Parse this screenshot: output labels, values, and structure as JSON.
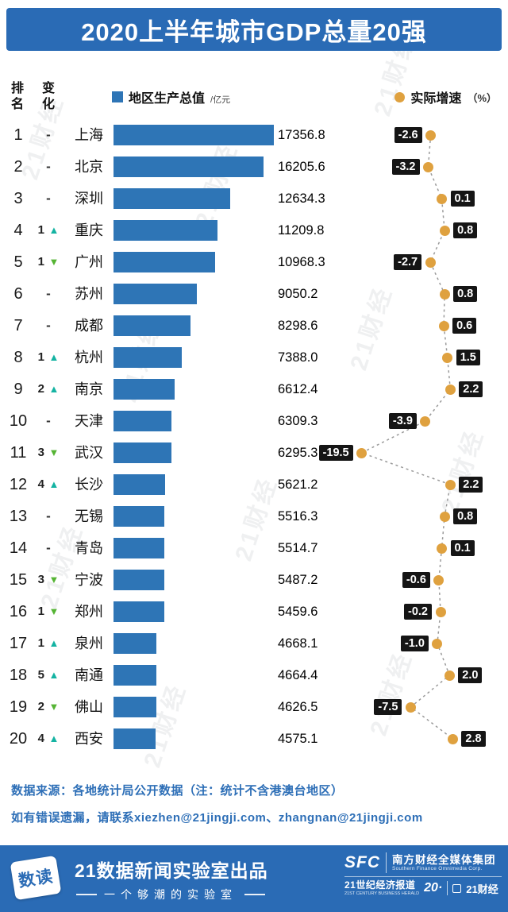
{
  "watermark": "21财经",
  "header": {
    "title": "2020上半年城市GDP总量20强"
  },
  "legend": {
    "rank_label": "排\n名",
    "change_label": "变\n化",
    "bar_label": "地区生产总值",
    "bar_unit": "/亿元",
    "dot_label": "实际增速",
    "dot_unit": "（%）"
  },
  "chart_data": {
    "type": "bar",
    "title": "2020上半年城市GDP总量20强",
    "categories": [
      "上海",
      "北京",
      "深圳",
      "重庆",
      "广州",
      "苏州",
      "成都",
      "杭州",
      "南京",
      "天津",
      "武汉",
      "长沙",
      "无锡",
      "青岛",
      "宁波",
      "郑州",
      "泉州",
      "南通",
      "佛山",
      "西安"
    ],
    "series": [
      {
        "name": "地区生产总值",
        "unit": "亿元",
        "values": [
          17356.8,
          16205.6,
          12634.3,
          11209.8,
          10968.3,
          9050.2,
          8298.6,
          7388.0,
          6612.4,
          6309.3,
          6295.3,
          5621.2,
          5516.3,
          5514.7,
          5487.2,
          5459.6,
          4668.1,
          4664.4,
          4626.5,
          4575.1
        ]
      },
      {
        "name": "实际增速",
        "unit": "%",
        "values": [
          -2.6,
          -3.2,
          0.1,
          0.8,
          -2.7,
          0.8,
          0.6,
          1.5,
          2.2,
          -3.9,
          -19.5,
          2.2,
          0.8,
          0.1,
          -0.6,
          -0.2,
          -1.0,
          2.0,
          -7.5,
          2.8
        ]
      }
    ],
    "ranks": [
      1,
      2,
      3,
      4,
      5,
      6,
      7,
      8,
      9,
      10,
      11,
      12,
      13,
      14,
      15,
      16,
      17,
      18,
      19,
      20
    ],
    "rank_changes": [
      0,
      0,
      0,
      1,
      -1,
      0,
      0,
      1,
      2,
      0,
      -3,
      4,
      0,
      0,
      -3,
      -1,
      1,
      5,
      -2,
      4
    ],
    "no_change_symbol": "-",
    "gdp_axis": [
      0,
      17356.8
    ],
    "growth_range": [
      -20,
      3
    ],
    "legend_position": "top",
    "grid": false
  },
  "footer": {
    "source_line1": "数据来源：各地统计局公开数据（注：统计不含港澳台地区）",
    "source_line2": "如有错误遗漏，请联系xiezhen@21jingji.com、zhangnan@21jingji.com"
  },
  "bottom_bar": {
    "logo_text": "数读",
    "title": "21数据新闻实验室出品",
    "subtitle": "一个够潮的实验室",
    "sfc": "SFC",
    "sfc_cn": "南方财经全媒体集团",
    "sfc_en": "Southern Finance Omnimedia Corp.",
    "herald": "21世纪经济报道",
    "herald_en": "21ST CENTURY BUSINESS HERALD",
    "anniv": "20·",
    "jingji": "21财经"
  },
  "colors": {
    "primary_blue": "#2a6bb5",
    "bar_blue": "#2e75b6",
    "dot_orange": "#dfa13f",
    "badge_black": "#151515",
    "up_teal": "#14b3a2",
    "down_green": "#55b434",
    "source_text_blue": "#2e6fb7"
  }
}
